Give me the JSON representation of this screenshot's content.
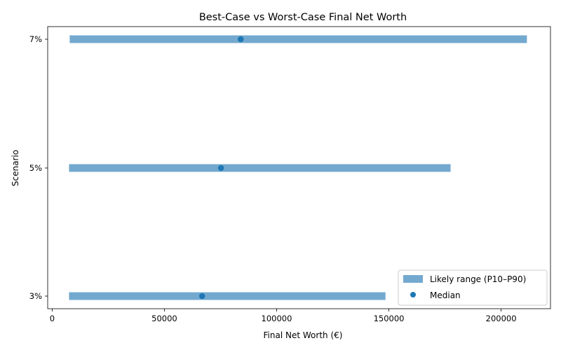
{
  "chart_data": {
    "type": "range",
    "title": "Best-Case vs Worst-Case Final Net Worth",
    "xlabel": "Final Net Worth (€)",
    "ylabel": "Scenario",
    "xlim": [
      -2000,
      222000
    ],
    "xticks": [
      0,
      50000,
      100000,
      150000,
      200000
    ],
    "xtick_labels": [
      "0",
      "50000",
      "100000",
      "150000",
      "200000"
    ],
    "categories": [
      "3%",
      "5%",
      "7%"
    ],
    "series": [
      {
        "name": "Likely range (P10–P90)",
        "kind": "range",
        "color": "#74a9cf",
        "low": [
          7500,
          7500,
          7800
        ],
        "high": [
          148500,
          177500,
          211500
        ]
      },
      {
        "name": "Median",
        "kind": "point",
        "color": "#1f77b4",
        "values": [
          66800,
          75200,
          84000
        ]
      }
    ],
    "legend_position": "lower right",
    "grid": false
  }
}
